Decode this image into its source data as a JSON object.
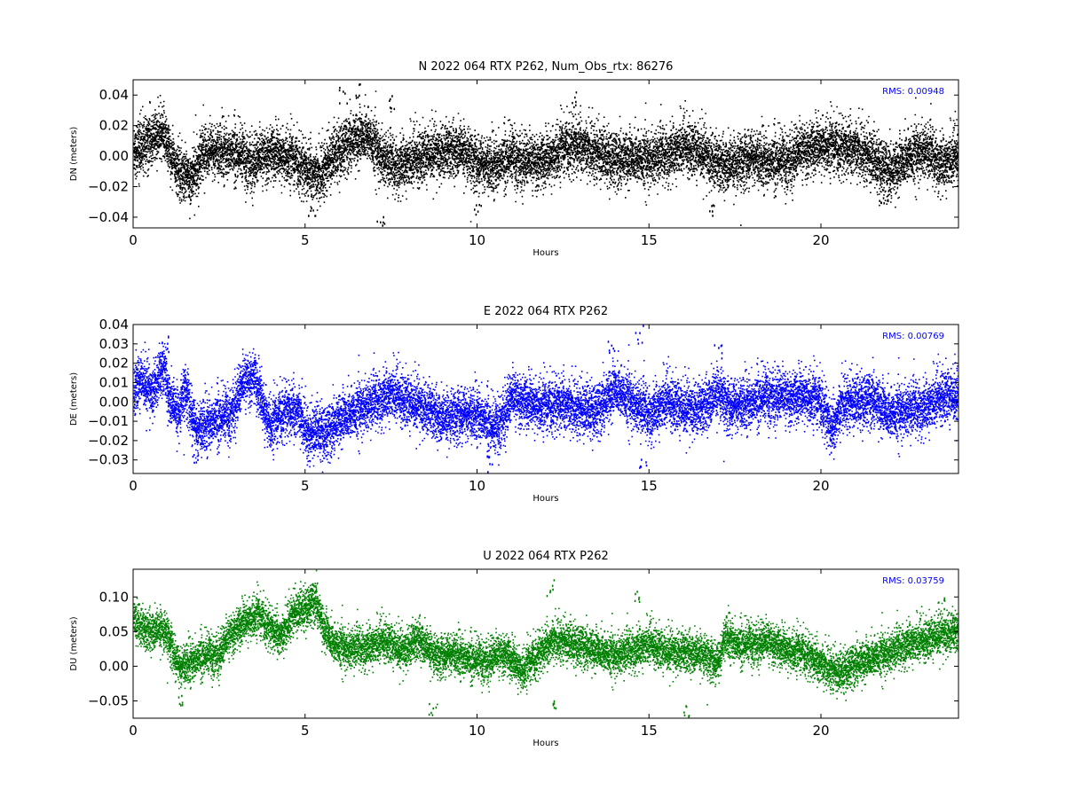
{
  "colors": {
    "north": "#000000",
    "east": "#0000ff",
    "up": "#008000",
    "rms": "#0000ff"
  },
  "panels": [
    {
      "title": "N 2022 064 RTX  P262, Num_Obs_rtx: 86276",
      "ylabel": "DN (meters)",
      "xlabel": "Hours",
      "rms_label": "RMS:  0.00948",
      "color_key": "north"
    },
    {
      "title": "E 2022 064 RTX  P262",
      "ylabel": "DE (meters)",
      "xlabel": "Hours",
      "rms_label": "RMS:  0.00769",
      "color_key": "east"
    },
    {
      "title": "U 2022 064 RTX  P262",
      "ylabel": "DU (meters)",
      "xlabel": "Hours",
      "rms_label": "RMS:  0.03759",
      "color_key": "up"
    }
  ],
  "chart_data": [
    {
      "type": "scatter",
      "title": "N 2022 064 RTX  P262, Num_Obs_rtx: 86276",
      "xlabel": "Hours",
      "ylabel": "DN (meters)",
      "xlim": [
        0,
        24
      ],
      "ylim": [
        -0.047,
        0.05
      ],
      "xticks": [
        0,
        5,
        10,
        15,
        20
      ],
      "xtick_labels": [
        "0",
        "5",
        "10",
        "15",
        "20"
      ],
      "yticks": [
        -0.04,
        -0.02,
        0.0,
        0.02,
        0.04
      ],
      "ytick_labels": [
        "−0.04",
        "−0.02",
        "0.00",
        "0.02",
        "0.04"
      ],
      "num_obs": 86276,
      "rms": 0.00948,
      "annotation": "RMS:  0.00948",
      "series": [
        {
          "color": "#000000",
          "trend": [
            [
              0,
              0.004
            ],
            [
              0.3,
              0.008
            ],
            [
              0.6,
              0.012
            ],
            [
              0.9,
              0.015
            ],
            [
              1.1,
              0.0
            ],
            [
              1.4,
              -0.012
            ],
            [
              1.7,
              -0.014
            ],
            [
              2.0,
              0.002
            ],
            [
              2.5,
              0.004
            ],
            [
              3.0,
              0.002
            ],
            [
              3.5,
              -0.004
            ],
            [
              4.0,
              0.003
            ],
            [
              4.5,
              0.0
            ],
            [
              5.0,
              -0.008
            ],
            [
              5.4,
              -0.012
            ],
            [
              5.8,
              0.0
            ],
            [
              6.3,
              0.01
            ],
            [
              6.8,
              0.015
            ],
            [
              7.2,
              0.0
            ],
            [
              7.6,
              -0.006
            ],
            [
              8.2,
              0.0
            ],
            [
              9.0,
              0.002
            ],
            [
              9.5,
              0.005
            ],
            [
              10.0,
              -0.004
            ],
            [
              10.5,
              -0.006
            ],
            [
              11.0,
              0.0
            ],
            [
              11.5,
              -0.004
            ],
            [
              12.0,
              -0.002
            ],
            [
              12.5,
              0.006
            ],
            [
              13.0,
              0.008
            ],
            [
              13.5,
              0.002
            ],
            [
              14.0,
              -0.002
            ],
            [
              14.5,
              0.0
            ],
            [
              15.0,
              -0.002
            ],
            [
              15.5,
              0.002
            ],
            [
              16.0,
              0.008
            ],
            [
              16.5,
              0.002
            ],
            [
              17.0,
              -0.006
            ],
            [
              17.5,
              -0.004
            ],
            [
              18.0,
              0.0
            ],
            [
              18.5,
              -0.004
            ],
            [
              19.0,
              -0.002
            ],
            [
              19.5,
              0.004
            ],
            [
              20.0,
              0.008
            ],
            [
              20.5,
              0.006
            ],
            [
              21.0,
              0.006
            ],
            [
              21.5,
              -0.002
            ],
            [
              22.0,
              -0.01
            ],
            [
              22.5,
              0.0
            ],
            [
              23.0,
              0.004
            ],
            [
              23.5,
              -0.004
            ],
            [
              24.0,
              0.002
            ]
          ],
          "scatter_sd": 0.0085,
          "outliers": [
            [
              6.5,
              0.048
            ],
            [
              6.1,
              0.046
            ],
            [
              7.2,
              -0.045
            ],
            [
              12.8,
              0.043
            ],
            [
              5.2,
              -0.04
            ],
            [
              16.8,
              -0.04
            ],
            [
              7.5,
              0.042
            ],
            [
              10.0,
              -0.04
            ],
            [
              21.8,
              -0.035
            ]
          ]
        }
      ]
    },
    {
      "type": "scatter",
      "title": "E 2022 064 RTX  P262",
      "xlabel": "Hours",
      "ylabel": "DE (meters)",
      "xlim": [
        0,
        24
      ],
      "ylim": [
        -0.037,
        0.04
      ],
      "xticks": [
        0,
        5,
        10,
        15,
        20
      ],
      "xtick_labels": [
        "0",
        "5",
        "10",
        "15",
        "20"
      ],
      "yticks": [
        -0.03,
        -0.02,
        -0.01,
        0.0,
        0.01,
        0.02,
        0.03,
        0.04
      ],
      "ytick_labels": [
        "−0.03",
        "−0.02",
        "−0.01",
        "0.00",
        "0.01",
        "0.02",
        "0.03",
        "0.04"
      ],
      "rms": 0.00769,
      "annotation": "RMS:  0.00769",
      "series": [
        {
          "color": "#0000ff",
          "trend": [
            [
              0,
              0.006
            ],
            [
              0.2,
              0.012
            ],
            [
              0.5,
              0.004
            ],
            [
              0.9,
              0.018
            ],
            [
              1.0,
              0.004
            ],
            [
              1.3,
              -0.006
            ],
            [
              1.5,
              0.008
            ],
            [
              1.8,
              -0.014
            ],
            [
              2.3,
              -0.01
            ],
            [
              2.8,
              -0.006
            ],
            [
              3.2,
              0.01
            ],
            [
              3.5,
              0.014
            ],
            [
              3.8,
              -0.004
            ],
            [
              4.0,
              -0.012
            ],
            [
              4.4,
              -0.004
            ],
            [
              4.8,
              -0.004
            ],
            [
              5.1,
              -0.018
            ],
            [
              5.3,
              -0.014
            ],
            [
              5.6,
              -0.016
            ],
            [
              6.0,
              -0.008
            ],
            [
              6.5,
              -0.004
            ],
            [
              7.0,
              0.0
            ],
            [
              7.5,
              0.006
            ],
            [
              8.0,
              0.0
            ],
            [
              8.5,
              -0.004
            ],
            [
              9.0,
              -0.008
            ],
            [
              9.5,
              -0.006
            ],
            [
              10.0,
              -0.006
            ],
            [
              10.5,
              -0.014
            ],
            [
              11.0,
              0.002
            ],
            [
              11.5,
              0.0
            ],
            [
              12.0,
              -0.002
            ],
            [
              12.5,
              0.0
            ],
            [
              13.0,
              -0.004
            ],
            [
              13.5,
              -0.004
            ],
            [
              14.0,
              0.008
            ],
            [
              14.5,
              0.0
            ],
            [
              15.0,
              -0.006
            ],
            [
              15.5,
              0.002
            ],
            [
              16.0,
              -0.004
            ],
            [
              16.5,
              -0.004
            ],
            [
              17.0,
              0.006
            ],
            [
              17.3,
              -0.002
            ],
            [
              18.0,
              0.0
            ],
            [
              18.5,
              0.004
            ],
            [
              19.0,
              0.002
            ],
            [
              19.5,
              0.004
            ],
            [
              20.0,
              0.0
            ],
            [
              20.3,
              -0.014
            ],
            [
              20.6,
              0.0
            ],
            [
              21.0,
              0.0
            ],
            [
              21.5,
              0.002
            ],
            [
              22.0,
              -0.006
            ],
            [
              22.5,
              -0.004
            ],
            [
              23.0,
              -0.002
            ],
            [
              23.5,
              0.004
            ],
            [
              24.0,
              0.002
            ]
          ],
          "scatter_sd": 0.0065,
          "outliers": [
            [
              0.9,
              0.035
            ],
            [
              14.7,
              0.04
            ],
            [
              10.3,
              -0.036
            ],
            [
              14.8,
              -0.035
            ],
            [
              1.8,
              -0.031
            ],
            [
              17.0,
              0.03
            ],
            [
              13.9,
              0.033
            ]
          ]
        }
      ]
    },
    {
      "type": "scatter",
      "title": "U 2022 064 RTX  P262",
      "xlabel": "Hours",
      "ylabel": "DU (meters)",
      "xlim": [
        0,
        24
      ],
      "ylim": [
        -0.075,
        0.14
      ],
      "xticks": [
        0,
        5,
        10,
        15,
        20
      ],
      "xtick_labels": [
        "0",
        "5",
        "10",
        "15",
        "20"
      ],
      "yticks": [
        -0.05,
        0.0,
        0.05,
        0.1
      ],
      "ytick_labels": [
        "−0.05",
        "0.00",
        "0.05",
        "0.10"
      ],
      "rms": 0.03759,
      "annotation": "RMS:  0.03759",
      "series": [
        {
          "color": "#008000",
          "trend": [
            [
              0,
              0.07
            ],
            [
              0.3,
              0.05
            ],
            [
              0.8,
              0.055
            ],
            [
              1.0,
              0.045
            ],
            [
              1.3,
              0.0
            ],
            [
              1.6,
              0.005
            ],
            [
              2.0,
              0.015
            ],
            [
              2.5,
              0.02
            ],
            [
              2.8,
              0.045
            ],
            [
              3.2,
              0.065
            ],
            [
              3.6,
              0.075
            ],
            [
              4.0,
              0.055
            ],
            [
              4.3,
              0.045
            ],
            [
              4.6,
              0.075
            ],
            [
              5.0,
              0.085
            ],
            [
              5.3,
              0.095
            ],
            [
              5.5,
              0.06
            ],
            [
              5.8,
              0.035
            ],
            [
              6.2,
              0.025
            ],
            [
              6.8,
              0.03
            ],
            [
              7.3,
              0.04
            ],
            [
              7.8,
              0.02
            ],
            [
              8.3,
              0.04
            ],
            [
              8.8,
              0.015
            ],
            [
              9.3,
              0.02
            ],
            [
              9.8,
              0.01
            ],
            [
              10.3,
              0.01
            ],
            [
              10.8,
              0.02
            ],
            [
              11.3,
              -0.005
            ],
            [
              11.8,
              0.02
            ],
            [
              12.2,
              0.04
            ],
            [
              12.6,
              0.035
            ],
            [
              13.0,
              0.03
            ],
            [
              13.5,
              0.025
            ],
            [
              14.0,
              0.015
            ],
            [
              14.5,
              0.025
            ],
            [
              15.0,
              0.035
            ],
            [
              15.5,
              0.02
            ],
            [
              16.0,
              0.02
            ],
            [
              16.5,
              0.02
            ],
            [
              17.0,
              0.005
            ],
            [
              17.2,
              0.045
            ],
            [
              17.6,
              0.03
            ],
            [
              18.0,
              0.035
            ],
            [
              18.5,
              0.035
            ],
            [
              19.0,
              0.025
            ],
            [
              19.5,
              0.02
            ],
            [
              20.0,
              0.005
            ],
            [
              20.5,
              -0.01
            ],
            [
              21.0,
              0.005
            ],
            [
              21.5,
              0.015
            ],
            [
              22.0,
              0.02
            ],
            [
              22.5,
              0.035
            ],
            [
              23.0,
              0.04
            ],
            [
              23.5,
              0.045
            ],
            [
              24.0,
              0.05
            ]
          ],
          "scatter_sd": 0.014,
          "outliers": [
            [
              12.1,
              0.135
            ],
            [
              16.1,
              -0.073
            ],
            [
              8.7,
              -0.07
            ],
            [
              12.3,
              -0.062
            ],
            [
              1.4,
              -0.055
            ],
            [
              5.2,
              0.12
            ],
            [
              14.6,
              0.11
            ],
            [
              23.5,
              0.1
            ]
          ]
        }
      ]
    }
  ]
}
